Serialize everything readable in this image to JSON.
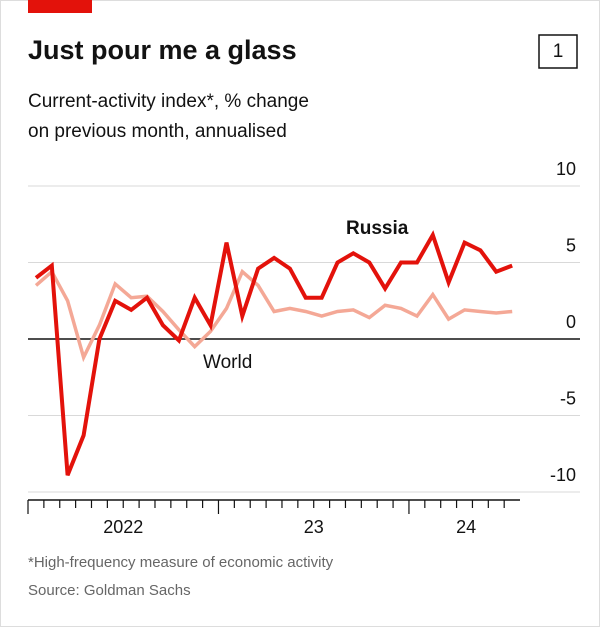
{
  "chart_data": {
    "type": "line",
    "title": "Just pour me a glass",
    "chart_number": "1",
    "subtitle": [
      "Current-activity index*, % change",
      "on previous month, annualised"
    ],
    "footnote": "*High-frequency measure of economic activity",
    "source": "Source: Goldman Sachs",
    "x": [
      2022.042,
      2022.125,
      2022.208,
      2022.292,
      2022.375,
      2022.458,
      2022.542,
      2022.625,
      2022.708,
      2022.792,
      2022.875,
      2022.958,
      2023.042,
      2023.125,
      2023.208,
      2023.292,
      2023.375,
      2023.458,
      2023.542,
      2023.625,
      2023.708,
      2023.792,
      2023.875,
      2023.958,
      2024.042,
      2024.125,
      2024.208,
      2024.292,
      2024.375,
      2024.458,
      2024.542
    ],
    "series": [
      {
        "name": "World",
        "color": "#f4a896",
        "values": [
          3.5,
          4.4,
          2.5,
          -1.2,
          0.9,
          3.6,
          2.7,
          2.8,
          1.8,
          0.6,
          -0.5,
          0.5,
          2.0,
          4.4,
          3.5,
          1.8,
          2.0,
          1.8,
          1.5,
          1.8,
          1.9,
          1.4,
          2.2,
          2.0,
          1.5,
          2.9,
          1.3,
          1.9,
          1.8,
          1.7,
          1.8
        ]
      },
      {
        "name": "Russia",
        "color": "#e3120b",
        "values": [
          4.0,
          4.8,
          -8.9,
          -6.3,
          0.0,
          2.5,
          1.9,
          2.7,
          0.9,
          -0.1,
          2.7,
          0.9,
          6.3,
          1.5,
          4.6,
          5.3,
          4.6,
          2.7,
          2.7,
          5.0,
          5.6,
          5.0,
          3.3,
          5.0,
          5.0,
          6.8,
          3.7,
          6.3,
          5.8,
          4.4,
          4.8
        ]
      }
    ],
    "xlim": [
      2022,
      2024.583
    ],
    "xticks": [
      {
        "value": 2022.5,
        "label": "2022"
      },
      {
        "value": 2023.5,
        "label": "23"
      },
      {
        "value": 2024.3,
        "label": "24"
      }
    ],
    "ylim": [
      -10,
      10
    ],
    "yticks": [
      -10,
      -5,
      0,
      5,
      10
    ],
    "grid": true
  }
}
